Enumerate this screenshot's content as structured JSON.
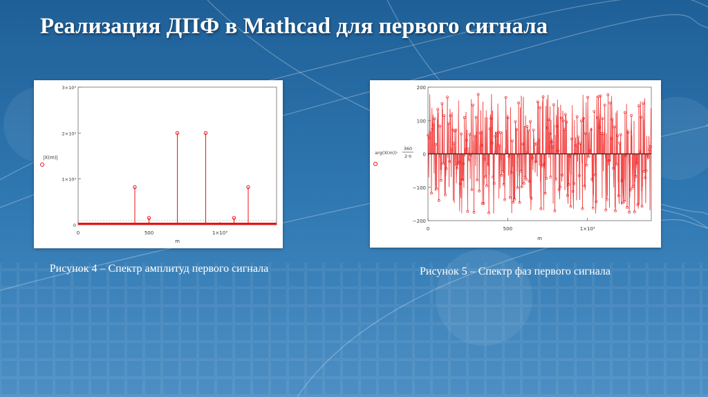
{
  "slide": {
    "title": "Реализация ДПФ в Mathcad для первого сигнала",
    "caption_amp": "Рисунок 4 – Спектр амплитуд первого сигнала",
    "caption_phase": "Рисунок 5 – Спектр фаз первого сигнала"
  },
  "colors": {
    "background": "#2a6fa8",
    "series": "#ee1111",
    "axis": "#666666",
    "title": "#ffffff"
  },
  "chart_data": [
    {
      "type": "stem",
      "ylabel": "|X(m)|",
      "xlabel": "m",
      "xlim": [
        0,
        1400
      ],
      "ylim": [
        0,
        3000
      ],
      "xticks": [
        {
          "v": 0,
          "label": "0"
        },
        {
          "v": 500,
          "label": "500"
        },
        {
          "v": 1000,
          "label": "1×10³"
        }
      ],
      "yticks": [
        {
          "v": 0,
          "label": "0"
        },
        {
          "v": 1000,
          "label": "1×10³"
        },
        {
          "v": 2000,
          "label": "2×10³"
        },
        {
          "v": 3000,
          "label": "3×10³"
        }
      ],
      "grid": false,
      "series": [
        {
          "x": [
            400,
            500,
            700,
            900,
            1100,
            1200
          ],
          "y": [
            820,
            150,
            2000,
            2000,
            150,
            820
          ]
        }
      ],
      "baseline_noise": "near zero for all other m"
    },
    {
      "type": "stem",
      "ylabel": "arg(X(m))·360/(2·π)",
      "xlabel": "m",
      "xlim": [
        0,
        1400
      ],
      "ylim": [
        -200,
        200
      ],
      "xticks": [
        {
          "v": 0,
          "label": "0"
        },
        {
          "v": 500,
          "label": "500"
        },
        {
          "v": 1000,
          "label": "1×10³"
        }
      ],
      "yticks": [
        {
          "v": 200,
          "label": "200"
        },
        {
          "v": 100,
          "label": "100"
        },
        {
          "v": 0,
          "label": "0"
        },
        {
          "v": -100,
          "label": "−100"
        },
        {
          "v": -200,
          "label": "−200"
        }
      ],
      "grid": false,
      "series": [
        {
          "description": "dense random phase values between -180 and 180 for every m",
          "y_range": [
            -180,
            180
          ],
          "count": 1400
        }
      ]
    }
  ]
}
